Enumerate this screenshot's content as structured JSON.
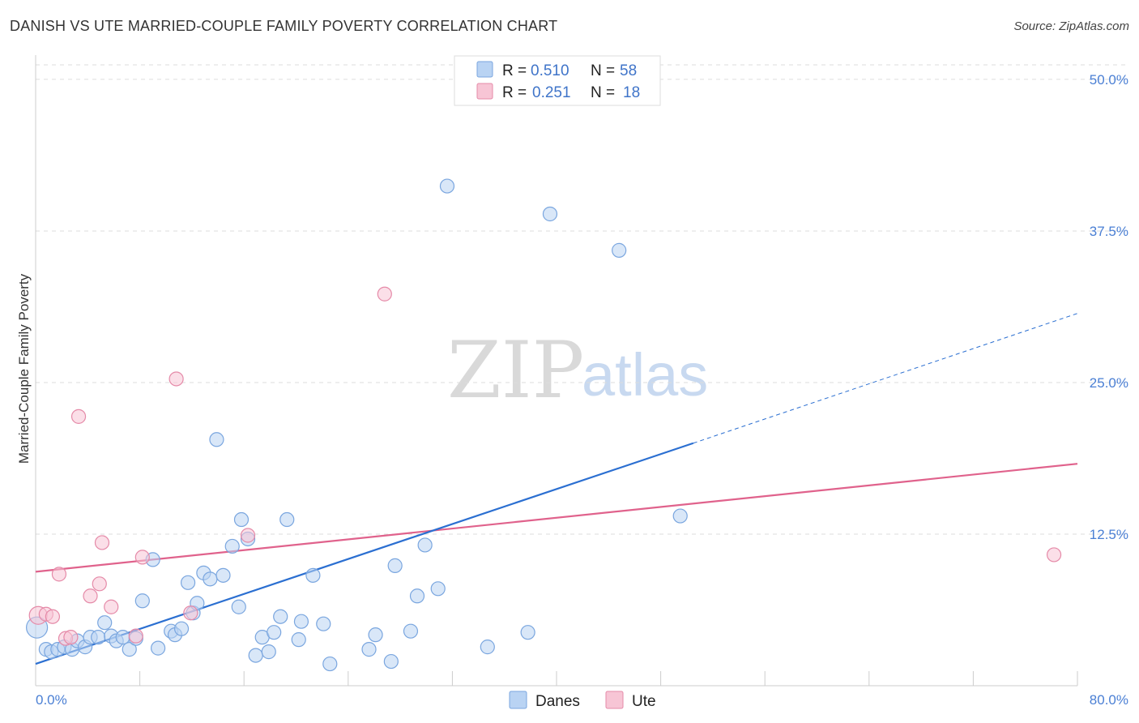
{
  "title": "DANISH VS UTE MARRIED-COUPLE FAMILY POVERTY CORRELATION CHART",
  "source": "Source: ZipAtlas.com",
  "watermark": {
    "zip": "ZIP",
    "atlas": "atlas"
  },
  "legend_top": [
    {
      "r_label": "R =",
      "r_value": "0.510",
      "n_label": "N =",
      "n_value": "58"
    },
    {
      "r_label": "R =",
      "r_value": "0.251",
      "n_label": "N =",
      "n_value": "18"
    }
  ],
  "legend_bottom": [
    "Danes",
    "Ute"
  ],
  "colors": {
    "danes_fill": "#b9d3f3",
    "danes_stroke": "#7aa6df",
    "danes_line": "#2b6fd1",
    "ute_fill": "#f7c5d5",
    "ute_stroke": "#e58aa8",
    "ute_line": "#e0628c",
    "grid": "#dddddd",
    "tick": "#4a7fd4"
  },
  "chart_data": {
    "type": "scatter",
    "title": "DANISH VS UTE MARRIED-COUPLE FAMILY POVERTY CORRELATION CHART",
    "xlabel": "",
    "ylabel": "Married-Couple Family Poverty",
    "xlim": [
      0,
      80
    ],
    "ylim": [
      0,
      52
    ],
    "x_tick_labels": [
      "0.0%",
      "80.0%"
    ],
    "y_ticks": [
      12.5,
      25.0,
      37.5,
      50.0
    ],
    "y_tick_labels": [
      "12.5%",
      "25.0%",
      "37.5%",
      "50.0%"
    ],
    "grid": true,
    "legend_position": "top-center",
    "series": [
      {
        "name": "Danes",
        "R": 0.51,
        "N": 58,
        "points": [
          [
            0.1,
            4.8
          ],
          [
            0.8,
            3.0
          ],
          [
            1.2,
            2.8
          ],
          [
            1.7,
            3.0
          ],
          [
            2.2,
            3.2
          ],
          [
            2.8,
            3.0
          ],
          [
            3.2,
            3.7
          ],
          [
            3.8,
            3.2
          ],
          [
            4.2,
            4.0
          ],
          [
            4.8,
            4.0
          ],
          [
            5.3,
            5.2
          ],
          [
            5.8,
            4.1
          ],
          [
            6.2,
            3.7
          ],
          [
            6.7,
            4.0
          ],
          [
            7.2,
            3.0
          ],
          [
            7.7,
            3.9
          ],
          [
            8.2,
            7.0
          ],
          [
            9.4,
            3.1
          ],
          [
            9.0,
            10.4
          ],
          [
            10.4,
            4.5
          ],
          [
            10.7,
            4.2
          ],
          [
            11.2,
            4.7
          ],
          [
            11.7,
            8.5
          ],
          [
            12.1,
            6.0
          ],
          [
            12.4,
            6.8
          ],
          [
            12.9,
            9.3
          ],
          [
            13.4,
            8.8
          ],
          [
            13.9,
            20.3
          ],
          [
            14.4,
            9.1
          ],
          [
            15.1,
            11.5
          ],
          [
            15.6,
            6.5
          ],
          [
            15.8,
            13.7
          ],
          [
            16.3,
            12.1
          ],
          [
            16.9,
            2.5
          ],
          [
            17.4,
            4.0
          ],
          [
            17.9,
            2.8
          ],
          [
            18.3,
            4.4
          ],
          [
            18.8,
            5.7
          ],
          [
            19.3,
            13.7
          ],
          [
            20.2,
            3.8
          ],
          [
            20.4,
            5.3
          ],
          [
            21.3,
            9.1
          ],
          [
            22.1,
            5.1
          ],
          [
            22.6,
            1.8
          ],
          [
            25.6,
            3.0
          ],
          [
            26.1,
            4.2
          ],
          [
            27.3,
            2.0
          ],
          [
            27.6,
            9.9
          ],
          [
            28.8,
            4.5
          ],
          [
            29.3,
            7.4
          ],
          [
            29.9,
            11.6
          ],
          [
            30.9,
            8.0
          ],
          [
            31.6,
            41.2
          ],
          [
            34.7,
            3.2
          ],
          [
            37.8,
            4.4
          ],
          [
            39.5,
            38.9
          ],
          [
            44.8,
            35.9
          ],
          [
            49.5,
            14.0
          ]
        ],
        "trend": {
          "x": [
            0,
            50.5
          ],
          "y": [
            1.8,
            20.0
          ]
        },
        "trend_extension": {
          "x": [
            50.5,
            80
          ],
          "y": [
            20.0,
            30.7
          ]
        }
      },
      {
        "name": "Ute",
        "R": 0.251,
        "N": 18,
        "points": [
          [
            0.2,
            5.8
          ],
          [
            0.8,
            5.9
          ],
          [
            1.3,
            5.7
          ],
          [
            1.8,
            9.2
          ],
          [
            2.3,
            3.9
          ],
          [
            2.7,
            4.0
          ],
          [
            3.3,
            22.2
          ],
          [
            4.2,
            7.4
          ],
          [
            4.9,
            8.4
          ],
          [
            5.1,
            11.8
          ],
          [
            5.8,
            6.5
          ],
          [
            7.7,
            4.1
          ],
          [
            8.2,
            10.6
          ],
          [
            10.8,
            25.3
          ],
          [
            11.9,
            6.0
          ],
          [
            16.3,
            12.4
          ],
          [
            26.8,
            32.3
          ],
          [
            78.2,
            10.8
          ]
        ],
        "trend": {
          "x": [
            0,
            80
          ],
          "y": [
            9.4,
            18.3
          ]
        }
      }
    ]
  }
}
